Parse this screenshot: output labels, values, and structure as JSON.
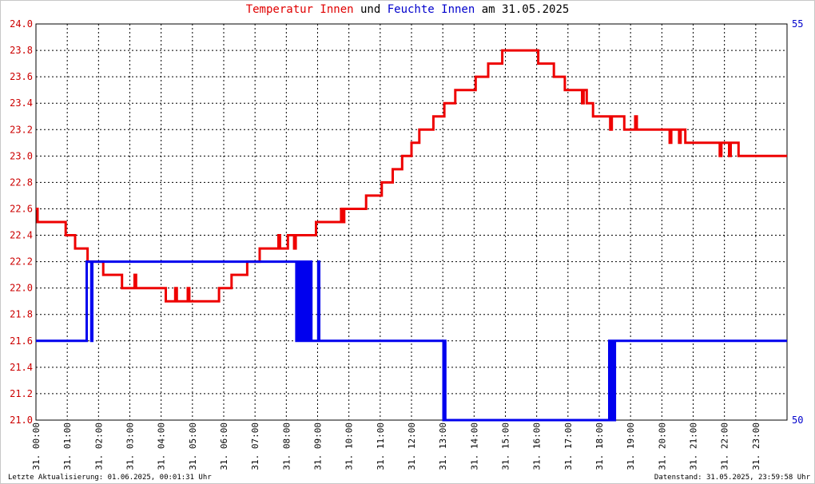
{
  "title": {
    "part1": "Temperatur Innen",
    "part2": "und",
    "part3": "Feuchte Innen",
    "part4": "am 31.05.2025"
  },
  "footer": {
    "left": "Letzte Aktualisierung: 01.06.2025, 00:01:31 Uhr",
    "right": "Datenstand: 31.05.2025, 23:59:58 Uhr"
  },
  "colors": {
    "temperature": "#ee0000",
    "humidity": "#0000ee",
    "grid": "#000000",
    "left_axis_text": "#cc0000",
    "right_axis_text": "#0000cc"
  },
  "chart_data": {
    "type": "line",
    "x_range_hours": [
      0,
      24
    ],
    "x_tick_labels": [
      "31. 00:00",
      "31. 01:00",
      "31. 02:00",
      "31. 03:00",
      "31. 04:00",
      "31. 05:00",
      "31. 06:00",
      "31. 07:00",
      "31. 08:00",
      "31. 09:00",
      "31. 10:00",
      "31. 11:00",
      "31. 12:00",
      "31. 13:00",
      "31. 14:00",
      "31. 15:00",
      "31. 16:00",
      "31. 17:00",
      "31. 18:00",
      "31. 19:00",
      "31. 20:00",
      "31. 21:00",
      "31. 22:00",
      "31. 23:00"
    ],
    "y_left": {
      "range": [
        21.0,
        24.0
      ],
      "tick_labels": [
        "21.0",
        "21.2",
        "21.4",
        "21.6",
        "21.8",
        "22.0",
        "22.2",
        "22.4",
        "22.6",
        "22.8",
        "23.0",
        "23.2",
        "23.4",
        "23.6",
        "23.8",
        "24.0"
      ]
    },
    "y_right": {
      "range": [
        50,
        55
      ],
      "tick_labels": [
        "50",
        "55"
      ]
    },
    "grid": true,
    "series": [
      {
        "name": "Temperatur Innen",
        "axis": "left",
        "points": [
          [
            0.0,
            22.6
          ],
          [
            0.05,
            22.5
          ],
          [
            0.9,
            22.5
          ],
          [
            0.95,
            22.4
          ],
          [
            1.2,
            22.4
          ],
          [
            1.25,
            22.3
          ],
          [
            1.6,
            22.3
          ],
          [
            1.65,
            22.2
          ],
          [
            2.1,
            22.2
          ],
          [
            2.15,
            22.1
          ],
          [
            2.7,
            22.1
          ],
          [
            2.75,
            22.0
          ],
          [
            3.1,
            22.0
          ],
          [
            3.15,
            22.1
          ],
          [
            3.2,
            22.0
          ],
          [
            4.1,
            22.0
          ],
          [
            4.15,
            21.9
          ],
          [
            4.4,
            21.9
          ],
          [
            4.45,
            22.0
          ],
          [
            4.5,
            21.9
          ],
          [
            4.8,
            21.9
          ],
          [
            4.85,
            22.0
          ],
          [
            4.9,
            21.9
          ],
          [
            5.8,
            21.9
          ],
          [
            5.85,
            22.0
          ],
          [
            6.2,
            22.0
          ],
          [
            6.25,
            22.1
          ],
          [
            6.7,
            22.1
          ],
          [
            6.75,
            22.2
          ],
          [
            7.1,
            22.2
          ],
          [
            7.15,
            22.3
          ],
          [
            7.7,
            22.3
          ],
          [
            7.75,
            22.4
          ],
          [
            7.8,
            22.3
          ],
          [
            8.0,
            22.3
          ],
          [
            8.05,
            22.4
          ],
          [
            8.2,
            22.4
          ],
          [
            8.25,
            22.3
          ],
          [
            8.3,
            22.4
          ],
          [
            8.9,
            22.4
          ],
          [
            8.95,
            22.5
          ],
          [
            9.7,
            22.5
          ],
          [
            9.75,
            22.6
          ],
          [
            9.8,
            22.5
          ],
          [
            9.85,
            22.6
          ],
          [
            10.5,
            22.6
          ],
          [
            10.55,
            22.7
          ],
          [
            11.0,
            22.7
          ],
          [
            11.05,
            22.8
          ],
          [
            11.35,
            22.8
          ],
          [
            11.4,
            22.9
          ],
          [
            11.65,
            22.9
          ],
          [
            11.7,
            23.0
          ],
          [
            11.95,
            23.0
          ],
          [
            12.0,
            23.1
          ],
          [
            12.2,
            23.1
          ],
          [
            12.25,
            23.2
          ],
          [
            12.65,
            23.2
          ],
          [
            12.7,
            23.3
          ],
          [
            13.0,
            23.3
          ],
          [
            13.05,
            23.4
          ],
          [
            13.35,
            23.4
          ],
          [
            13.4,
            23.5
          ],
          [
            14.0,
            23.5
          ],
          [
            14.05,
            23.6
          ],
          [
            14.4,
            23.6
          ],
          [
            14.45,
            23.7
          ],
          [
            14.85,
            23.7
          ],
          [
            14.9,
            23.8
          ],
          [
            16.0,
            23.8
          ],
          [
            16.05,
            23.7
          ],
          [
            16.5,
            23.7
          ],
          [
            16.55,
            23.6
          ],
          [
            16.85,
            23.6
          ],
          [
            16.9,
            23.5
          ],
          [
            17.4,
            23.5
          ],
          [
            17.45,
            23.4
          ],
          [
            17.5,
            23.5
          ],
          [
            17.6,
            23.4
          ],
          [
            17.75,
            23.4
          ],
          [
            17.8,
            23.3
          ],
          [
            18.3,
            23.3
          ],
          [
            18.35,
            23.2
          ],
          [
            18.4,
            23.3
          ],
          [
            18.75,
            23.3
          ],
          [
            18.8,
            23.2
          ],
          [
            19.1,
            23.2
          ],
          [
            19.15,
            23.3
          ],
          [
            19.2,
            23.2
          ],
          [
            20.2,
            23.2
          ],
          [
            20.25,
            23.1
          ],
          [
            20.3,
            23.2
          ],
          [
            20.5,
            23.2
          ],
          [
            20.55,
            23.1
          ],
          [
            20.6,
            23.2
          ],
          [
            20.7,
            23.2
          ],
          [
            20.75,
            23.1
          ],
          [
            21.8,
            23.1
          ],
          [
            21.85,
            23.0
          ],
          [
            21.9,
            23.1
          ],
          [
            22.1,
            23.1
          ],
          [
            22.15,
            23.0
          ],
          [
            22.2,
            23.1
          ],
          [
            22.4,
            23.1
          ],
          [
            22.45,
            23.0
          ],
          [
            24.0,
            23.0
          ]
        ]
      },
      {
        "name": "Feuchte Innen",
        "axis": "right",
        "points": [
          [
            0.0,
            51.0
          ],
          [
            1.6,
            51.0
          ],
          [
            1.62,
            52.0
          ],
          [
            1.75,
            52.0
          ],
          [
            1.77,
            51.0
          ],
          [
            1.8,
            52.0
          ],
          [
            8.3,
            52.0
          ],
          [
            8.32,
            51.0
          ],
          [
            8.35,
            52.0
          ],
          [
            8.4,
            52.0
          ],
          [
            8.42,
            51.0
          ],
          [
            8.45,
            52.0
          ],
          [
            8.5,
            51.0
          ],
          [
            8.55,
            52.0
          ],
          [
            8.6,
            51.0
          ],
          [
            8.65,
            52.0
          ],
          [
            8.7,
            51.0
          ],
          [
            8.75,
            52.0
          ],
          [
            8.8,
            51.0
          ],
          [
            8.85,
            51.0
          ],
          [
            9.0,
            51.0
          ],
          [
            9.02,
            52.0
          ],
          [
            9.05,
            51.0
          ],
          [
            13.0,
            51.0
          ],
          [
            13.02,
            50.0
          ],
          [
            13.05,
            51.0
          ],
          [
            13.08,
            50.0
          ],
          [
            18.3,
            50.0
          ],
          [
            18.32,
            51.0
          ],
          [
            18.35,
            50.0
          ],
          [
            18.38,
            51.0
          ],
          [
            18.41,
            50.0
          ],
          [
            18.44,
            51.0
          ],
          [
            18.47,
            50.0
          ],
          [
            18.5,
            51.0
          ],
          [
            24.0,
            51.0
          ]
        ]
      }
    ]
  }
}
